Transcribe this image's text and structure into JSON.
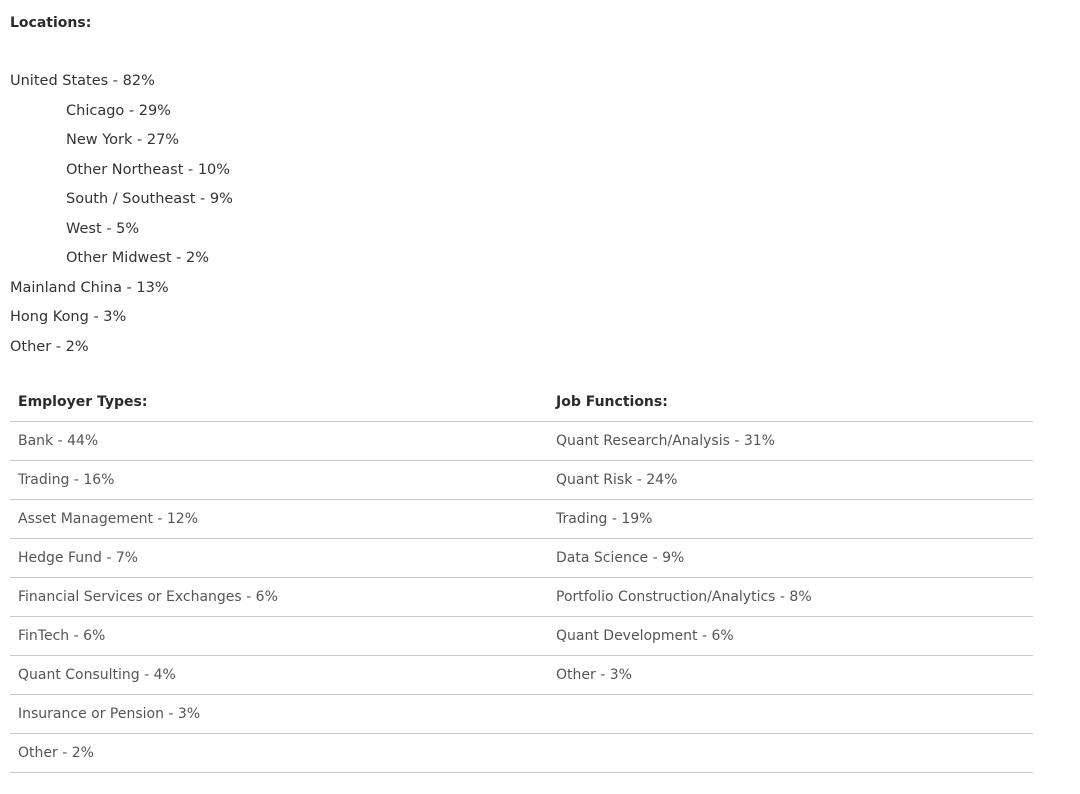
{
  "locations": {
    "heading": "Locations:",
    "items": [
      {
        "label": "United States - 82%"
      },
      {
        "label": "Chicago - 29%"
      },
      {
        "label": "New York - 27%"
      },
      {
        "label": "Other Northeast - 10%"
      },
      {
        "label": "South / Southeast - 9%"
      },
      {
        "label": "West - 5%"
      },
      {
        "label": "Other Midwest - 2%"
      },
      {
        "label": "Mainland China - 13%"
      },
      {
        "label": "Hong Kong - 3%"
      },
      {
        "label": "Other - 2%"
      }
    ]
  },
  "table": {
    "headers": [
      "Employer Types:",
      "Job Functions:"
    ],
    "rows": [
      [
        "Bank - 44%",
        "Quant Research/Analysis - 31%"
      ],
      [
        "Trading - 16%",
        "Quant Risk - 24%"
      ],
      [
        "Asset Management - 12%",
        "Trading - 19%"
      ],
      [
        "Hedge Fund - 7%",
        "Data Science - 9%"
      ],
      [
        "Financial Services or Exchanges - 6%",
        "Portfolio Construction/Analytics - 8%"
      ],
      [
        "FinTech - 6%",
        "Quant Development - 6%"
      ],
      [
        "Quant Consulting - 4%",
        "Other - 3%"
      ],
      [
        "Insurance or Pension - 3%",
        ""
      ],
      [
        "Other - 2%",
        ""
      ]
    ]
  }
}
